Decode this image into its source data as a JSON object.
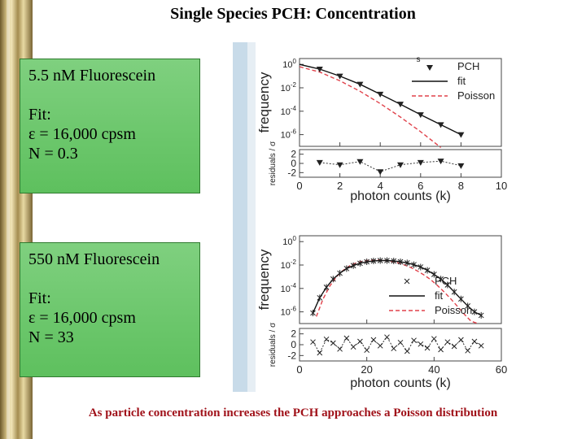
{
  "title": "Single Species PCH: Concentration",
  "footer": "As particle concentration increases the PCH approaches a Poisson distribution",
  "boxes": [
    {
      "heading": "5.5 nM Fluorescein",
      "fit_label": "Fit:",
      "eps_line": "ε = 16,000 cpsm",
      "n_line": "N = 0.3"
    },
    {
      "heading": "550 nM Fluorescein",
      "fit_label": "Fit:",
      "eps_line": "ε = 16,000 cpsm",
      "n_line": "N = 33"
    }
  ],
  "colors": {
    "data": "#222222",
    "fit": "#111111",
    "poisson": "#e0414a",
    "title": "#000000",
    "footer": "#a0121a"
  },
  "chart_data": [
    {
      "type": "scatter",
      "xlabel": "photon counts (k)",
      "ylabel_top": "frequency",
      "ylabel_bottom": "residuals / σ",
      "xlim": [
        0,
        10
      ],
      "xticks": [
        "0",
        "2",
        "4",
        "6",
        "8",
        "10"
      ],
      "ylog_range": [
        -7,
        0.5
      ],
      "yticks_top": [
        "10^0",
        "10^-2",
        "10^-4",
        "10^-6"
      ],
      "yticks_top_exp": [
        0,
        -2,
        -4,
        -6
      ],
      "res_range": [
        -3,
        3
      ],
      "yticks_bottom": [
        "2",
        "0",
        "-2"
      ],
      "yticks_bottom_val": [
        2,
        0,
        -2
      ],
      "legend": [
        "PCH",
        "fit",
        "Poisson"
      ],
      "legend_position": "top-right",
      "corner_mark": "s",
      "pch": {
        "x": [
          1,
          2,
          3,
          4,
          5,
          6,
          7,
          8
        ],
        "log10y": [
          -0.4,
          -1.0,
          -1.7,
          -2.55,
          -3.4,
          -4.3,
          -5.15,
          -6.0
        ]
      },
      "fit": {
        "x": [
          0,
          1,
          2,
          3,
          4,
          5,
          6,
          7,
          8
        ],
        "log10y": [
          0,
          -0.4,
          -1.0,
          -1.7,
          -2.55,
          -3.4,
          -4.3,
          -5.15,
          -6.0
        ]
      },
      "poisson": {
        "x": [
          0,
          1,
          2,
          3,
          4,
          5,
          6,
          7
        ],
        "log10y": [
          -0.2,
          -0.65,
          -1.4,
          -2.3,
          -3.35,
          -4.5,
          -5.75,
          -7.1
        ]
      },
      "residuals": {
        "x": [
          1,
          2,
          3,
          4,
          5,
          6,
          7,
          8
        ],
        "values": [
          0.2,
          -0.3,
          0.4,
          -1.8,
          -0.3,
          0.2,
          0.5,
          -0.5
        ]
      }
    },
    {
      "type": "scatter",
      "xlabel": "photon counts (k)",
      "ylabel_top": "frequency",
      "ylabel_bottom": "residuals / σ",
      "xlim": [
        0,
        60
      ],
      "xticks": [
        "0",
        "20",
        "40",
        "60"
      ],
      "ylog_range": [
        -7,
        0.5
      ],
      "yticks_top": [
        "10^0",
        "10^-2",
        "10^-4",
        "10^-6"
      ],
      "yticks_top_exp": [
        0,
        -2,
        -4,
        -6
      ],
      "res_range": [
        -3,
        3
      ],
      "yticks_bottom": [
        "2",
        "0",
        "-2"
      ],
      "yticks_bottom_val": [
        2,
        0,
        -2
      ],
      "legend": [
        "PCH",
        "fit",
        "Poisson"
      ],
      "legend_position": "center-right",
      "pch": {
        "x": [
          4,
          6,
          8,
          10,
          12,
          14,
          16,
          18,
          20,
          22,
          24,
          26,
          28,
          30,
          32,
          34,
          36,
          38,
          40,
          42,
          44,
          46,
          48,
          50,
          52,
          54
        ],
        "log10y": [
          -6.1,
          -4.8,
          -3.9,
          -3.2,
          -2.7,
          -2.3,
          -2.05,
          -1.85,
          -1.72,
          -1.65,
          -1.62,
          -1.62,
          -1.65,
          -1.72,
          -1.82,
          -1.97,
          -2.17,
          -2.45,
          -2.8,
          -3.2,
          -3.7,
          -4.3,
          -4.9,
          -5.5,
          -6.0,
          -6.3
        ]
      },
      "fit": {
        "x": [
          4,
          6,
          8,
          10,
          12,
          14,
          16,
          18,
          20,
          22,
          24,
          26,
          28,
          30,
          32,
          34,
          36,
          38,
          40,
          42,
          44,
          46,
          48,
          50,
          52,
          54
        ],
        "log10y": [
          -6.1,
          -4.8,
          -3.9,
          -3.2,
          -2.7,
          -2.3,
          -2.05,
          -1.85,
          -1.72,
          -1.65,
          -1.62,
          -1.62,
          -1.65,
          -1.72,
          -1.82,
          -1.97,
          -2.17,
          -2.45,
          -2.8,
          -3.2,
          -3.7,
          -4.3,
          -4.9,
          -5.5,
          -6.0,
          -6.3
        ]
      },
      "poisson": {
        "x": [
          5,
          7,
          9,
          11,
          13,
          15,
          17,
          19,
          21,
          23,
          25,
          27,
          29,
          31,
          33,
          35,
          37,
          39,
          41,
          43,
          45,
          47,
          49,
          51,
          53
        ],
        "log10y": [
          -6.4,
          -4.9,
          -3.8,
          -3.0,
          -2.45,
          -2.05,
          -1.8,
          -1.65,
          -1.58,
          -1.57,
          -1.6,
          -1.68,
          -1.8,
          -1.97,
          -2.2,
          -2.5,
          -2.85,
          -3.25,
          -3.75,
          -4.3,
          -4.9,
          -5.55,
          -6.2,
          -6.8,
          -7.0
        ]
      },
      "residuals": {
        "x": [
          4,
          6,
          8,
          10,
          12,
          14,
          16,
          18,
          20,
          22,
          24,
          26,
          28,
          30,
          32,
          34,
          36,
          38,
          40,
          42,
          44,
          46,
          48,
          50,
          52,
          54
        ],
        "values": [
          0.5,
          -1.5,
          1.0,
          0.3,
          -0.8,
          1.2,
          -0.4,
          0.6,
          -1.0,
          0.9,
          -0.2,
          1.4,
          -0.7,
          0.4,
          -1.2,
          0.8,
          0.1,
          -0.6,
          1.1,
          -0.9,
          0.5,
          -0.3,
          0.9,
          -1.1,
          0.6,
          -0.2
        ]
      }
    }
  ]
}
